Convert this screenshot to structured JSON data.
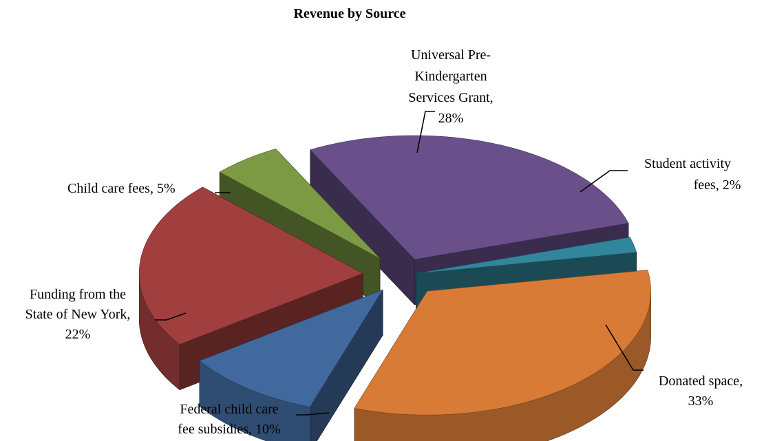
{
  "chart_data": {
    "type": "pie",
    "style": "3d-exploded",
    "title": "Revenue by Source",
    "categories": [
      "Student activity fees",
      "Donated space",
      "Federal child care fee subsidies",
      "Funding from the State of New York",
      "Child care fees",
      "Universal Pre-Kindergarten Services Grant"
    ],
    "values": [
      2,
      33,
      10,
      22,
      5,
      28
    ],
    "unit": "%",
    "data_labels": [
      {
        "category": "Student activity fees",
        "lines": [
          "Student activity",
          "fees, 2%"
        ]
      },
      {
        "category": "Donated space",
        "lines": [
          "Donated space,",
          "33%"
        ]
      },
      {
        "category": "Federal child care fee subsidies",
        "lines": [
          "Federal child care",
          "fee subsidies, 10%"
        ]
      },
      {
        "category": "Funding from the State of New York",
        "lines": [
          "Funding from the",
          "State of New York,",
          "22%"
        ]
      },
      {
        "category": "Child care fees",
        "lines": [
          "Child care fees, 5%"
        ]
      },
      {
        "category": "Universal Pre-Kindergarten Services Grant",
        "lines": [
          "Universal Pre-",
          "Kindergarten",
          "Services Grant,",
          "28%"
        ]
      }
    ],
    "colors": [
      "#31869b",
      "#d87b37",
      "#41699e",
      "#a13f3e",
      "#7c9a43",
      "#6a508b"
    ],
    "legend": "none"
  }
}
